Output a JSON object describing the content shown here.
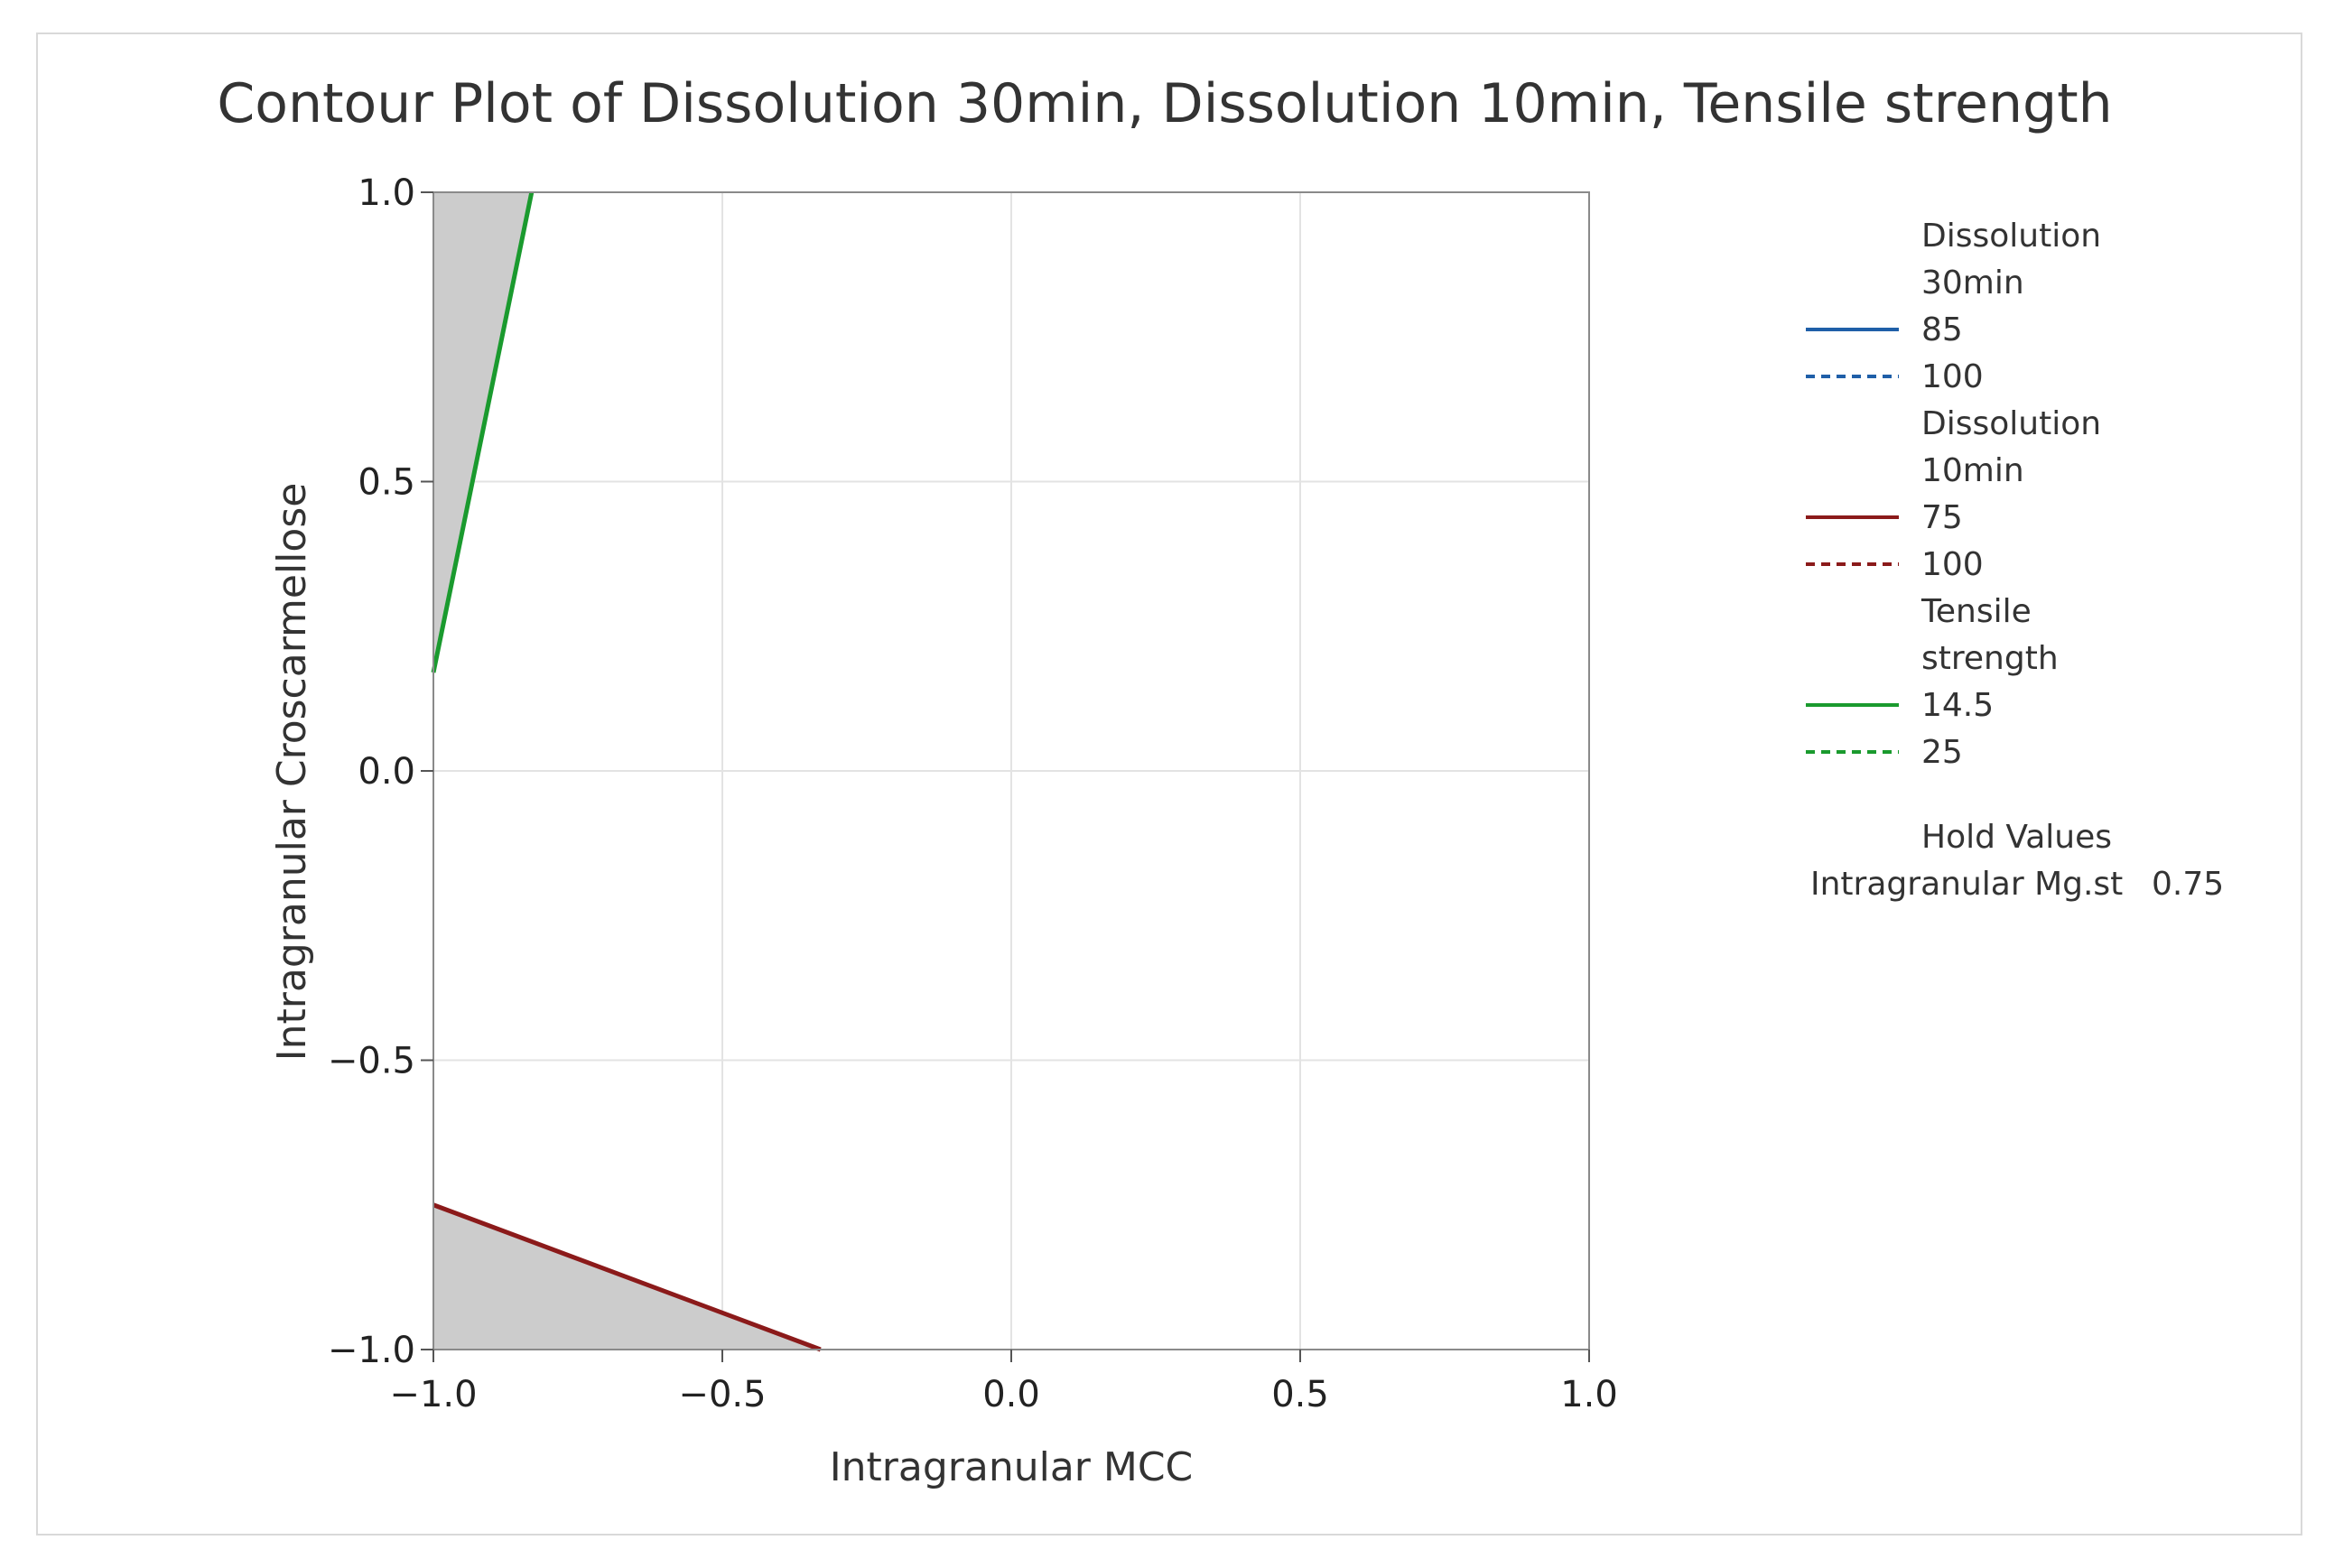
{
  "chart_data": {
    "type": "contour",
    "title": "Contour Plot of Dissolution 30min, Dissolution 10min, Tensile strength",
    "xlabel": "Intragranular MCC",
    "ylabel": "Intragranular Croscarmellose",
    "xlim": [
      -1.0,
      1.0
    ],
    "ylim": [
      -1.0,
      1.0
    ],
    "x_ticks": [
      -1.0,
      -0.5,
      0.0,
      0.5,
      1.0
    ],
    "y_ticks": [
      -1.0,
      -0.5,
      0.0,
      0.5,
      1.0
    ],
    "x_tick_labels": [
      "−1.0",
      "−0.5",
      "0.0",
      "0.5",
      "1.0"
    ],
    "y_tick_labels": [
      "−1.0",
      "−0.5",
      "0.0",
      "0.5",
      "1.0"
    ],
    "grid": true,
    "contours": [
      {
        "name": "Tensile strength",
        "level": "14.5",
        "color": "#1a9a2e",
        "style": "solid",
        "points": [
          [
            -1.0,
            0.17
          ],
          [
            -0.83,
            1.0
          ]
        ]
      },
      {
        "name": "Dissolution 10min",
        "level": "75",
        "color": "#8b1a1a",
        "style": "solid",
        "points": [
          [
            -1.0,
            -0.75
          ],
          [
            -0.33,
            -1.0
          ]
        ]
      }
    ],
    "shaded_regions": [
      {
        "color": "#cccccc",
        "points": [
          [
            -1.0,
            0.17
          ],
          [
            -0.83,
            1.0
          ],
          [
            -1.0,
            1.0
          ]
        ]
      },
      {
        "color": "#cccccc",
        "points": [
          [
            -1.0,
            -0.75
          ],
          [
            -0.33,
            -1.0
          ],
          [
            -1.0,
            -1.0
          ]
        ]
      }
    ],
    "legend": {
      "groups": [
        {
          "title_lines": [
            "Dissolution",
            "30min"
          ],
          "color": "#1f5fa8",
          "entries": [
            {
              "label": "85",
              "style": "solid"
            },
            {
              "label": "100",
              "style": "dashed"
            }
          ]
        },
        {
          "title_lines": [
            "Dissolution",
            "10min"
          ],
          "color": "#8b1a1a",
          "entries": [
            {
              "label": "75",
              "style": "solid"
            },
            {
              "label": "100",
              "style": "dashed"
            }
          ]
        },
        {
          "title_lines": [
            "Tensile",
            "strength"
          ],
          "color": "#1a9a2e",
          "entries": [
            {
              "label": "14.5",
              "style": "solid"
            },
            {
              "label": "25",
              "style": "dashed"
            }
          ]
        }
      ],
      "hold_values_title": "Hold Values",
      "hold_values": [
        {
          "name": "Intragranular Mg.st",
          "value": "0.75"
        }
      ]
    }
  }
}
